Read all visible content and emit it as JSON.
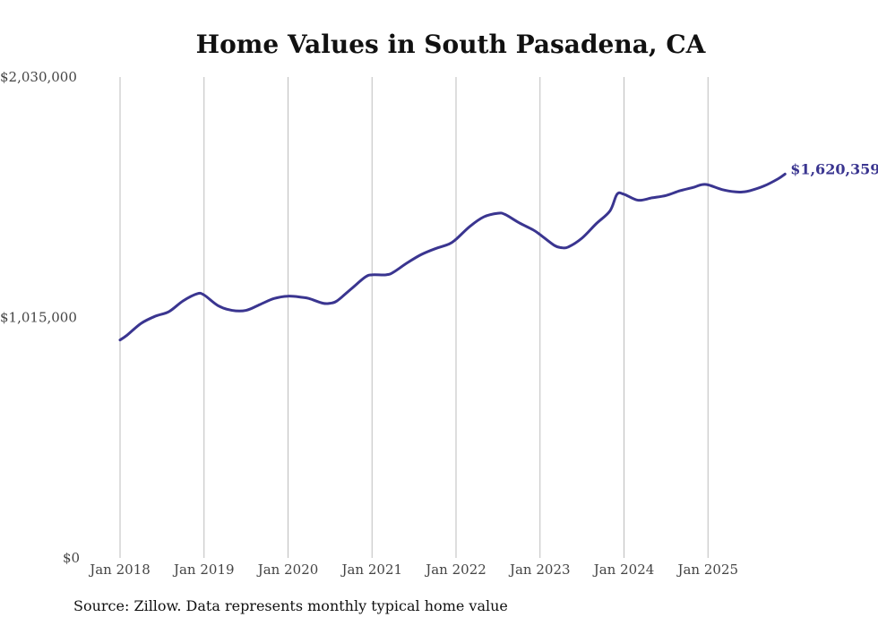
{
  "chart_data": {
    "type": "line",
    "title": "Home Values in South Pasadena, CA",
    "xlabel": "",
    "ylabel": "",
    "ylim": [
      0,
      2030000
    ],
    "yticks": [
      {
        "value": 0,
        "label": "$0"
      },
      {
        "value": 1015000,
        "label": "$1,015,000"
      },
      {
        "value": 2030000,
        "label": "$2,030,000"
      }
    ],
    "xlim": [
      2018.0,
      2026.0
    ],
    "xticks": [
      {
        "value": 2018,
        "label": "Jan 2018"
      },
      {
        "value": 2019,
        "label": "Jan 2019"
      },
      {
        "value": 2020,
        "label": "Jan 2020"
      },
      {
        "value": 2021,
        "label": "Jan 2021"
      },
      {
        "value": 2022,
        "label": "Jan 2022"
      },
      {
        "value": 2023,
        "label": "Jan 2023"
      },
      {
        "value": 2024,
        "label": "Jan 2024"
      },
      {
        "value": 2025,
        "label": "Jan 2025"
      }
    ],
    "grid": "vertical",
    "series": [
      {
        "name": "Typical home value",
        "color": "#3a3590",
        "end_label": "$1,620,359",
        "x": [
          2018.0,
          2018.083,
          2018.25,
          2018.417,
          2018.583,
          2018.75,
          2018.917,
          2019.0,
          2019.167,
          2019.333,
          2019.5,
          2019.667,
          2019.833,
          2020.0,
          2020.167,
          2020.25,
          2020.417,
          2020.5,
          2020.583,
          2020.75,
          2020.917,
          2021.0,
          2021.167,
          2021.25,
          2021.417,
          2021.583,
          2021.75,
          2021.917,
          2022.0,
          2022.167,
          2022.333,
          2022.5,
          2022.583,
          2022.75,
          2022.917,
          2023.0,
          2023.167,
          2023.25,
          2023.333,
          2023.5,
          2023.667,
          2023.833,
          2023.917,
          2024.0,
          2024.167,
          2024.333,
          2024.5,
          2024.667,
          2024.833,
          2024.917,
          2025.0,
          2025.167,
          2025.333,
          2025.417,
          2025.5,
          2025.667,
          2025.833,
          2025.917
        ],
        "values": [
          920000,
          940000,
          990000,
          1020000,
          1040000,
          1085000,
          1115000,
          1110000,
          1065000,
          1045000,
          1045000,
          1070000,
          1095000,
          1105000,
          1100000,
          1095000,
          1075000,
          1075000,
          1085000,
          1135000,
          1185000,
          1195000,
          1195000,
          1205000,
          1245000,
          1280000,
          1305000,
          1325000,
          1345000,
          1400000,
          1440000,
          1455000,
          1450000,
          1415000,
          1385000,
          1365000,
          1320000,
          1310000,
          1312000,
          1350000,
          1410000,
          1465000,
          1535000,
          1535000,
          1510000,
          1520000,
          1530000,
          1550000,
          1565000,
          1575000,
          1575000,
          1555000,
          1545000,
          1545000,
          1550000,
          1570000,
          1600000,
          1620359
        ]
      }
    ]
  },
  "source_text": "Source: Zillow. Data represents monthly typical home value"
}
